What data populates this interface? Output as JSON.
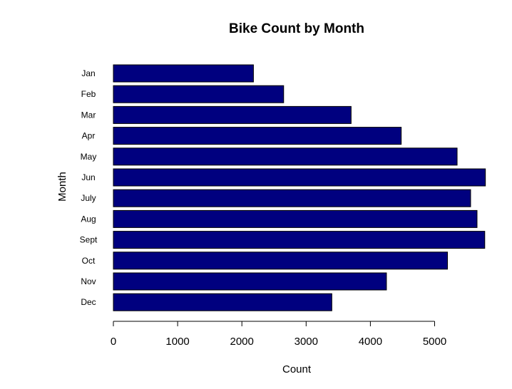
{
  "chart_data": {
    "type": "bar",
    "orientation": "horizontal",
    "title": "Bike Count by Month",
    "xlabel": "Count",
    "ylabel": "Month",
    "categories": [
      "Jan",
      "Feb",
      "Mar",
      "Apr",
      "May",
      "Jun",
      "July",
      "Aug",
      "Sept",
      "Oct",
      "Nov",
      "Dec"
    ],
    "values": [
      2180,
      2650,
      3700,
      4480,
      5350,
      5790,
      5560,
      5660,
      5780,
      5200,
      4250,
      3400
    ],
    "xlim": [
      0,
      5800
    ],
    "xticks": [
      "0",
      "1000",
      "2000",
      "3000",
      "4000",
      "5000"
    ],
    "bar_color": "#00007f",
    "grid": false,
    "legend": "none"
  }
}
